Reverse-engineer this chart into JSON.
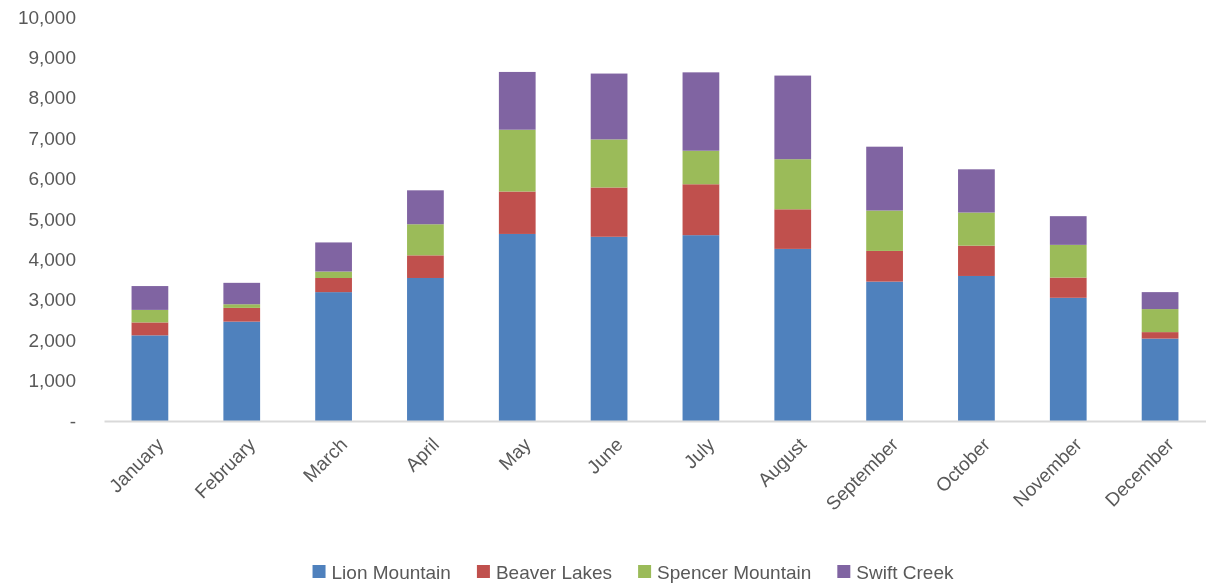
{
  "chart_data": {
    "type": "bar",
    "stacked": true,
    "categories": [
      "January",
      "February",
      "March",
      "April",
      "May",
      "June",
      "July",
      "August",
      "September",
      "October",
      "November",
      "December"
    ],
    "series": [
      {
        "name": "Lion Mountain",
        "color": "#4f81bd",
        "values": [
          2120,
          2460,
          3190,
          3540,
          4630,
          4560,
          4600,
          4260,
          3450,
          3590,
          3050,
          2040
        ]
      },
      {
        "name": "Beaver Lakes",
        "color": "#c0504d",
        "values": [
          320,
          340,
          350,
          560,
          1050,
          1220,
          1260,
          980,
          760,
          750,
          500,
          160
        ]
      },
      {
        "name": "Spencer Mountain",
        "color": "#9bbb59",
        "values": [
          310,
          90,
          160,
          770,
          1530,
          1190,
          830,
          1240,
          1000,
          820,
          810,
          570
        ]
      },
      {
        "name": "Swift Creek",
        "color": "#8064a2",
        "values": [
          590,
          530,
          720,
          840,
          1430,
          1630,
          1940,
          2070,
          1580,
          1070,
          710,
          420
        ]
      }
    ],
    "ylim": [
      0,
      10000
    ],
    "yticks": [
      {
        "value": 0,
        "label": "-"
      },
      {
        "value": 1000,
        "label": "1,000"
      },
      {
        "value": 2000,
        "label": "2,000"
      },
      {
        "value": 3000,
        "label": "3,000"
      },
      {
        "value": 4000,
        "label": "4,000"
      },
      {
        "value": 5000,
        "label": "5,000"
      },
      {
        "value": 6000,
        "label": "6,000"
      },
      {
        "value": 7000,
        "label": "7,000"
      },
      {
        "value": 8000,
        "label": "8,000"
      },
      {
        "value": 9000,
        "label": "9,000"
      },
      {
        "value": 10000,
        "label": "10,000"
      }
    ],
    "grid": false,
    "legend": "bottom"
  }
}
